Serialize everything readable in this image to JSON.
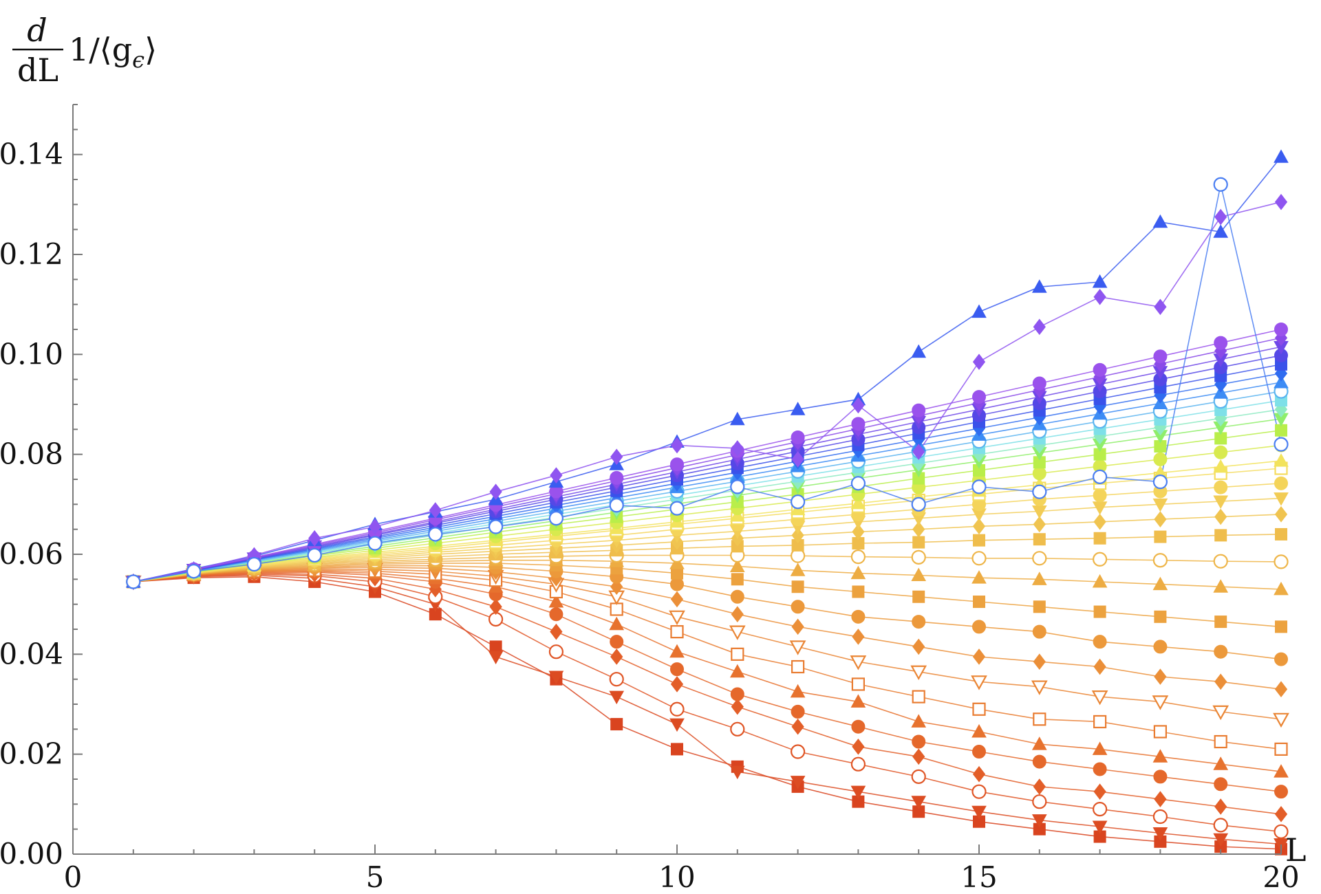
{
  "chart_data": {
    "type": "line",
    "title": "",
    "ylabel_parts": {
      "numerator": "d",
      "denominator": "dL",
      "expression": "1/⟨g",
      "subscript": "ϵ",
      "close": "⟩"
    },
    "xlabel": "L",
    "xlim": [
      0,
      20
    ],
    "ylim": [
      0,
      0.15
    ],
    "x_ticks": [
      {
        "value": 0,
        "label": "0"
      },
      {
        "value": 5,
        "label": "5"
      },
      {
        "value": 10,
        "label": "10"
      },
      {
        "value": 15,
        "label": "15"
      },
      {
        "value": 20,
        "label": "20"
      }
    ],
    "y_ticks": [
      {
        "value": 0.0,
        "label": "0.00"
      },
      {
        "value": 0.02,
        "label": "0.02"
      },
      {
        "value": 0.04,
        "label": "0.04"
      },
      {
        "value": 0.06,
        "label": "0.06"
      },
      {
        "value": 0.08,
        "label": "0.08"
      },
      {
        "value": 0.1,
        "label": "0.10"
      },
      {
        "value": 0.12,
        "label": "0.12"
      },
      {
        "value": 0.14,
        "label": "0.14"
      }
    ],
    "grid": false,
    "x": [
      1,
      2,
      3,
      4,
      5,
      6,
      7,
      8,
      9,
      10,
      11,
      12,
      13,
      14,
      15,
      16,
      17,
      18,
      19,
      20
    ],
    "series": [
      {
        "color": "#d9441f",
        "marker": "square-filled",
        "values": [
          0.0545,
          0.0553,
          0.0555,
          0.0545,
          0.0525,
          0.048,
          0.0415,
          0.035,
          0.026,
          0.021,
          0.0175,
          0.0135,
          0.0105,
          0.0085,
          0.0065,
          0.005,
          0.0035,
          0.0025,
          0.0015,
          0.001
        ]
      },
      {
        "color": "#dc4c22",
        "marker": "triangle-down-filled",
        "values": [
          0.0545,
          0.0555,
          0.0558,
          0.0552,
          0.0535,
          0.05,
          0.0395,
          0.0355,
          0.0315,
          0.026,
          0.0165,
          0.0145,
          0.0125,
          0.0105,
          0.0085,
          0.0068,
          0.0055,
          0.0042,
          0.003,
          0.002
        ]
      },
      {
        "color": "#e05525",
        "marker": "circle-open",
        "values": [
          0.0545,
          0.0556,
          0.056,
          0.0557,
          0.0545,
          0.0515,
          0.047,
          0.0405,
          0.035,
          0.029,
          0.025,
          0.0205,
          0.018,
          0.0155,
          0.0125,
          0.0105,
          0.009,
          0.0075,
          0.0058,
          0.0045
        ]
      },
      {
        "color": "#e35e28",
        "marker": "diamond-filled",
        "values": [
          0.0545,
          0.0557,
          0.0562,
          0.056,
          0.0552,
          0.053,
          0.0495,
          0.0445,
          0.0395,
          0.034,
          0.0295,
          0.0255,
          0.0215,
          0.0195,
          0.016,
          0.0135,
          0.0125,
          0.011,
          0.0095,
          0.008
        ]
      },
      {
        "color": "#e5682b",
        "marker": "circle-filled",
        "values": [
          0.0545,
          0.0558,
          0.0563,
          0.0564,
          0.0558,
          0.0545,
          0.052,
          0.048,
          0.0425,
          0.037,
          0.032,
          0.0285,
          0.0255,
          0.0225,
          0.0205,
          0.0185,
          0.017,
          0.0155,
          0.014,
          0.0125
        ]
      },
      {
        "color": "#e7722e",
        "marker": "triangle-filled",
        "values": [
          0.0545,
          0.0558,
          0.0565,
          0.0566,
          0.0562,
          0.0552,
          0.0535,
          0.0505,
          0.046,
          0.0405,
          0.0365,
          0.0325,
          0.0305,
          0.0265,
          0.0245,
          0.022,
          0.021,
          0.0195,
          0.018,
          0.0165
        ]
      },
      {
        "color": "#e97c31",
        "marker": "square-open",
        "values": [
          0.0545,
          0.0559,
          0.0566,
          0.0568,
          0.0566,
          0.056,
          0.0548,
          0.0525,
          0.049,
          0.0445,
          0.04,
          0.0375,
          0.034,
          0.0315,
          0.029,
          0.027,
          0.0265,
          0.0245,
          0.0225,
          0.021
        ]
      },
      {
        "color": "#ea8534",
        "marker": "triangle-down-open",
        "values": [
          0.0545,
          0.0559,
          0.0567,
          0.057,
          0.057,
          0.0566,
          0.0556,
          0.054,
          0.0515,
          0.0475,
          0.0445,
          0.0415,
          0.0385,
          0.0365,
          0.0345,
          0.0335,
          0.0315,
          0.0305,
          0.0285,
          0.027
        ]
      },
      {
        "color": "#eb8f38",
        "marker": "diamond-filled",
        "values": [
          0.0545,
          0.056,
          0.0568,
          0.0572,
          0.0574,
          0.0572,
          0.0565,
          0.0552,
          0.0535,
          0.051,
          0.048,
          0.0455,
          0.0435,
          0.0415,
          0.0395,
          0.0385,
          0.0375,
          0.0355,
          0.0345,
          0.033
        ]
      },
      {
        "color": "#ec993b",
        "marker": "circle-filled",
        "values": [
          0.0545,
          0.056,
          0.0569,
          0.0574,
          0.0577,
          0.0577,
          0.0574,
          0.0566,
          0.0555,
          0.054,
          0.0515,
          0.0495,
          0.0475,
          0.0465,
          0.0455,
          0.0445,
          0.0425,
          0.0415,
          0.0405,
          0.039
        ]
      },
      {
        "color": "#eca23f",
        "marker": "square-filled",
        "values": [
          0.0545,
          0.056,
          0.057,
          0.0576,
          0.058,
          0.0582,
          0.0582,
          0.0578,
          0.0572,
          0.0562,
          0.055,
          0.0535,
          0.0525,
          0.0515,
          0.0505,
          0.0495,
          0.0485,
          0.0475,
          0.0465,
          0.0455
        ]
      },
      {
        "color": "#edac43",
        "marker": "triangle-filled",
        "values": [
          0.0545,
          0.0561,
          0.0571,
          0.0578,
          0.0583,
          0.0586,
          0.0588,
          0.0588,
          0.0586,
          0.0582,
          0.0576,
          0.0568,
          0.0562,
          0.0558,
          0.0553,
          0.055,
          0.0545,
          0.054,
          0.0535,
          0.053
        ]
      },
      {
        "color": "#eeb548",
        "marker": "circle-open",
        "values": [
          0.0545,
          0.0561,
          0.0572,
          0.058,
          0.0586,
          0.059,
          0.0594,
          0.0596,
          0.0598,
          0.0598,
          0.0598,
          0.0597,
          0.0595,
          0.0594,
          0.0592,
          0.0592,
          0.059,
          0.0588,
          0.0586,
          0.0585
        ]
      },
      {
        "color": "#efbd4c",
        "marker": "square-filled",
        "values": [
          0.0545,
          0.0561,
          0.0573,
          0.0582,
          0.0589,
          0.0595,
          0.06,
          0.0604,
          0.0608,
          0.0612,
          0.0616,
          0.0618,
          0.0622,
          0.0624,
          0.0628,
          0.063,
          0.0632,
          0.0635,
          0.0638,
          0.064
        ]
      },
      {
        "color": "#f0c450",
        "marker": "diamond-filled",
        "values": [
          0.0545,
          0.0562,
          0.0574,
          0.0584,
          0.0592,
          0.06,
          0.0606,
          0.0612,
          0.0618,
          0.0625,
          0.0632,
          0.0638,
          0.0645,
          0.065,
          0.0656,
          0.066,
          0.0665,
          0.067,
          0.0675,
          0.068
        ]
      },
      {
        "color": "#f2cc55",
        "marker": "triangle-down-filled",
        "values": [
          0.0545,
          0.0562,
          0.0575,
          0.0586,
          0.0595,
          0.0604,
          0.0612,
          0.062,
          0.0628,
          0.0638,
          0.0646,
          0.0655,
          0.0665,
          0.0672,
          0.068,
          0.0686,
          0.0694,
          0.07,
          0.0706,
          0.0712
        ]
      },
      {
        "color": "#f4d45a",
        "marker": "circle-filled",
        "values": [
          0.0545,
          0.0562,
          0.0576,
          0.0588,
          0.0598,
          0.0608,
          0.0618,
          0.0628,
          0.0638,
          0.065,
          0.066,
          0.067,
          0.068,
          0.069,
          0.07,
          0.071,
          0.0718,
          0.0726,
          0.0734,
          0.0742
        ]
      },
      {
        "color": "#f5dc5e",
        "marker": "square-open",
        "values": [
          0.0545,
          0.0563,
          0.0577,
          0.059,
          0.0601,
          0.0612,
          0.0624,
          0.0636,
          0.0648,
          0.066,
          0.0672,
          0.0684,
          0.0696,
          0.0708,
          0.072,
          0.0732,
          0.0742,
          0.0752,
          0.0762,
          0.0772
        ]
      },
      {
        "color": "#f2e35c",
        "marker": "triangle-filled",
        "values": [
          0.0545,
          0.0563,
          0.0578,
          0.0592,
          0.0604,
          0.0616,
          0.0628,
          0.064,
          0.0652,
          0.0665,
          0.0677,
          0.069,
          0.0702,
          0.0715,
          0.0727,
          0.0739,
          0.0751,
          0.0763,
          0.0775,
          0.0787
        ]
      },
      {
        "color": "#d8ea4e",
        "marker": "circle-filled",
        "values": [
          0.0545,
          0.0564,
          0.058,
          0.0594,
          0.0608,
          0.0622,
          0.0636,
          0.065,
          0.0664,
          0.0678,
          0.0692,
          0.0706,
          0.072,
          0.0734,
          0.0748,
          0.0762,
          0.0776,
          0.079,
          0.0804,
          0.0818
        ]
      },
      {
        "color": "#b9ee4a",
        "marker": "square-filled",
        "values": [
          0.0545,
          0.0564,
          0.0581,
          0.0597,
          0.0612,
          0.0628,
          0.0644,
          0.066,
          0.0675,
          0.069,
          0.0705,
          0.072,
          0.0735,
          0.0752,
          0.0768,
          0.0784,
          0.08,
          0.0816,
          0.0832,
          0.0848
        ]
      },
      {
        "color": "#8fee6a",
        "marker": "triangle-down-filled",
        "values": [
          0.0545,
          0.0565,
          0.0583,
          0.0599,
          0.0616,
          0.0633,
          0.065,
          0.0667,
          0.0684,
          0.0701,
          0.0718,
          0.0735,
          0.0752,
          0.0769,
          0.0786,
          0.0803,
          0.082,
          0.0837,
          0.0854,
          0.0871
        ]
      },
      {
        "color": "#8deac2",
        "marker": "diamond-filled",
        "values": [
          0.0545,
          0.0565,
          0.0584,
          0.0602,
          0.062,
          0.0638,
          0.0656,
          0.0674,
          0.0692,
          0.071,
          0.0728,
          0.0746,
          0.0764,
          0.0782,
          0.08,
          0.0818,
          0.0836,
          0.0854,
          0.0872,
          0.089
        ]
      },
      {
        "color": "#7ee0e8",
        "marker": "square-filled",
        "values": [
          0.0545,
          0.0566,
          0.0585,
          0.0604,
          0.0623,
          0.0642,
          0.0661,
          0.068,
          0.0699,
          0.0718,
          0.0737,
          0.0756,
          0.0775,
          0.0794,
          0.0813,
          0.0832,
          0.0851,
          0.087,
          0.0889,
          0.0908
        ]
      },
      {
        "color": "#5ab4f0",
        "marker": "circle-open",
        "values": [
          0.0545,
          0.0566,
          0.0586,
          0.0606,
          0.0626,
          0.0646,
          0.0666,
          0.0686,
          0.0706,
          0.0726,
          0.0746,
          0.0766,
          0.0786,
          0.0806,
          0.0826,
          0.0846,
          0.0866,
          0.0886,
          0.0906,
          0.0926
        ]
      },
      {
        "color": "#3c8cf5",
        "marker": "triangle-filled",
        "values": [
          0.0545,
          0.0567,
          0.0588,
          0.0608,
          0.0629,
          0.065,
          0.0671,
          0.0692,
          0.0713,
          0.0734,
          0.0755,
          0.0776,
          0.0797,
          0.0818,
          0.0839,
          0.086,
          0.0881,
          0.0902,
          0.0923,
          0.0944
        ]
      },
      {
        "color": "#2f6cf0",
        "marker": "diamond-filled",
        "values": [
          0.0545,
          0.0567,
          0.0589,
          0.061,
          0.0632,
          0.0654,
          0.0676,
          0.0698,
          0.072,
          0.0742,
          0.0764,
          0.0786,
          0.0808,
          0.083,
          0.0852,
          0.0874,
          0.0896,
          0.0918,
          0.094,
          0.0962
        ]
      },
      {
        "color": "#3a52ea",
        "marker": "square-filled",
        "values": [
          0.0545,
          0.0568,
          0.059,
          0.0612,
          0.0635,
          0.0658,
          0.0681,
          0.0704,
          0.0727,
          0.075,
          0.0773,
          0.0796,
          0.0819,
          0.0842,
          0.0865,
          0.0888,
          0.0911,
          0.0934,
          0.0957,
          0.098
        ]
      },
      {
        "color": "#5548e6",
        "marker": "circle-filled",
        "values": [
          0.0545,
          0.0568,
          0.0591,
          0.0614,
          0.0638,
          0.0662,
          0.0686,
          0.071,
          0.0734,
          0.0758,
          0.0782,
          0.0806,
          0.083,
          0.0854,
          0.0878,
          0.0902,
          0.0926,
          0.095,
          0.0974,
          0.0998
        ]
      },
      {
        "color": "#6f47e8",
        "marker": "triangle-down-filled",
        "values": [
          0.0545,
          0.0569,
          0.0592,
          0.0616,
          0.064,
          0.0665,
          0.069,
          0.0715,
          0.074,
          0.0765,
          0.079,
          0.0815,
          0.084,
          0.0865,
          0.089,
          0.0915,
          0.094,
          0.0965,
          0.099,
          0.1015
        ]
      },
      {
        "color": "#8a4ae8",
        "marker": "diamond-filled",
        "values": [
          0.0545,
          0.0569,
          0.0593,
          0.0618,
          0.0643,
          0.0669,
          0.0695,
          0.0721,
          0.0747,
          0.0773,
          0.0799,
          0.0825,
          0.0851,
          0.0877,
          0.0903,
          0.0929,
          0.0955,
          0.0981,
          0.1007,
          0.1033
        ]
      },
      {
        "color": "#9a52ec",
        "marker": "circle-filled",
        "values": [
          0.0545,
          0.057,
          0.0594,
          0.062,
          0.0646,
          0.0672,
          0.0699,
          0.0726,
          0.0753,
          0.078,
          0.0807,
          0.0834,
          0.0861,
          0.0888,
          0.0915,
          0.0942,
          0.0969,
          0.0996,
          0.1023,
          0.105
        ]
      },
      {
        "color": "#3a5cf0",
        "marker": "triangle-filled",
        "values": [
          0.0545,
          0.0571,
          0.0596,
          0.0628,
          0.066,
          0.0685,
          0.071,
          0.0745,
          0.078,
          0.0825,
          0.087,
          0.089,
          0.091,
          0.1005,
          0.1085,
          0.1135,
          0.1145,
          0.1265,
          0.1245,
          0.1395
        ]
      },
      {
        "color": "#8f55f0",
        "marker": "diamond-filled",
        "values": [
          0.0545,
          0.0569,
          0.0598,
          0.0632,
          0.0655,
          0.0688,
          0.0725,
          0.0758,
          0.0795,
          0.0818,
          0.0812,
          0.079,
          0.0898,
          0.0805,
          0.0985,
          0.1055,
          0.1115,
          0.1095,
          0.1275,
          0.1305
        ]
      },
      {
        "color": "#4a7ef2",
        "marker": "circle-open",
        "values": [
          0.0545,
          0.0566,
          0.058,
          0.0598,
          0.0622,
          0.064,
          0.0655,
          0.0672,
          0.0698,
          0.0692,
          0.0735,
          0.0705,
          0.0742,
          0.07,
          0.0735,
          0.0725,
          0.0755,
          0.0745,
          0.134,
          0.082
        ]
      }
    ]
  }
}
